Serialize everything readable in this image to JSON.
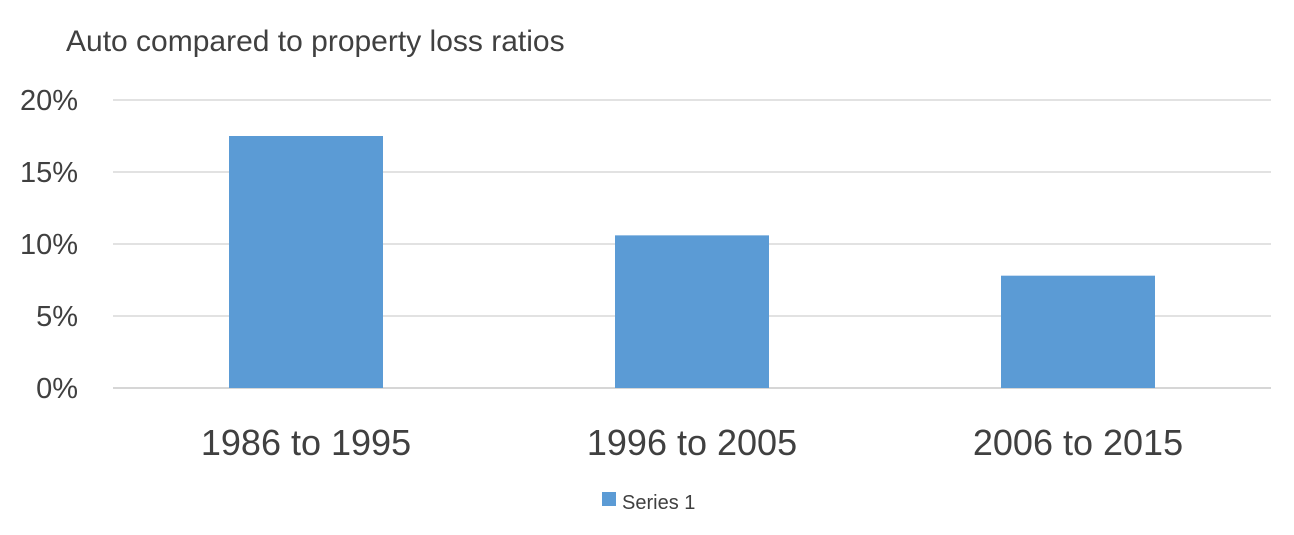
{
  "chart_data": {
    "type": "bar",
    "title": "Auto compared to property loss ratios",
    "categories": [
      "1986 to 1995",
      "1996 to 2005",
      "2006 to 2015"
    ],
    "series": [
      {
        "name": "Series 1",
        "values": [
          17.5,
          10.6,
          7.8
        ],
        "color": "#5b9bd5"
      }
    ],
    "yticks": [
      "0%",
      "5%",
      "10%",
      "15%",
      "20%"
    ],
    "ylim": [
      0,
      20
    ],
    "ystep": 5,
    "xlabel": "",
    "ylabel": "",
    "grid": true,
    "legend": "bottom"
  }
}
